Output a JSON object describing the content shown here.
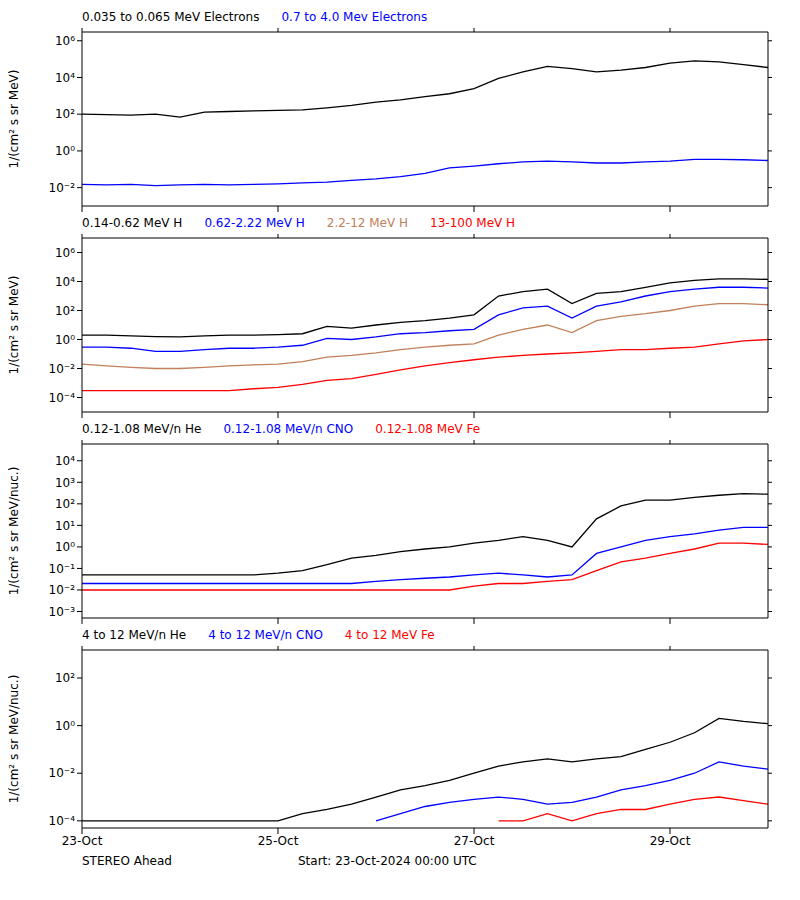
{
  "chart_data": [
    {
      "type": "line",
      "log": "y",
      "grid": false,
      "legend": "top",
      "tick_labels": "y",
      "ylabel": "1/(cm² s sr MeV)",
      "x": [
        0,
        0.25,
        0.5,
        0.75,
        1,
        1.25,
        1.5,
        1.75,
        2,
        2.25,
        2.5,
        2.75,
        3,
        3.25,
        3.5,
        3.75,
        4,
        4.25,
        4.5,
        4.75,
        5,
        5.25,
        5.5,
        5.75,
        6,
        6.25,
        6.5,
        6.75,
        7
      ],
      "xlim": [
        0,
        7
      ],
      "xticks": [
        {
          "value": 0,
          "label": "23-Oct"
        },
        {
          "value": 2,
          "label": "25-Oct"
        },
        {
          "value": 4,
          "label": "27-Oct"
        },
        {
          "value": 6,
          "label": "29-Oct"
        }
      ],
      "ylim": [
        0.001,
        3000000
      ],
      "yticks": [
        {
          "value": 0.01,
          "label": "10⁻²"
        },
        {
          "value": 1,
          "label": "10⁰"
        },
        {
          "value": 100,
          "label": "10²"
        },
        {
          "value": 10000,
          "label": "10⁴"
        },
        {
          "value": 1000000,
          "label": "10⁶"
        }
      ],
      "series": [
        {
          "name": "0.035 to 0.065 MeV Electrons",
          "color": "#000000",
          "values": [
            100,
            95,
            90,
            100,
            70,
            130,
            140,
            150,
            160,
            170,
            220,
            300,
            450,
            600,
            900,
            1300,
            2500,
            9000,
            20000,
            40000,
            30000,
            20000,
            25000,
            35000,
            60000,
            80000,
            70000,
            50000,
            35000
          ]
        },
        {
          "name": "0.7 to 4.0 Mev Electrons",
          "color": "#0000ff",
          "values": [
            0.015,
            0.014,
            0.015,
            0.013,
            0.014,
            0.015,
            0.014,
            0.015,
            0.016,
            0.018,
            0.02,
            0.025,
            0.03,
            0.04,
            0.06,
            0.12,
            0.15,
            0.2,
            0.25,
            0.28,
            0.25,
            0.22,
            0.22,
            0.25,
            0.28,
            0.35,
            0.35,
            0.33,
            0.3
          ]
        }
      ]
    },
    {
      "type": "line",
      "log": "y",
      "grid": false,
      "legend": "top",
      "tick_labels": "y",
      "ylabel": "1/(cm² s sr MeV)",
      "x": [
        0,
        0.25,
        0.5,
        0.75,
        1,
        1.25,
        1.5,
        1.75,
        2,
        2.25,
        2.5,
        2.75,
        3,
        3.25,
        3.5,
        3.75,
        4,
        4.25,
        4.5,
        4.75,
        5,
        5.25,
        5.5,
        5.75,
        6,
        6.25,
        6.5,
        6.75,
        7
      ],
      "xlim": [
        0,
        7
      ],
      "xticks": [
        {
          "value": 0,
          "label": "23-Oct"
        },
        {
          "value": 2,
          "label": "25-Oct"
        },
        {
          "value": 4,
          "label": "27-Oct"
        },
        {
          "value": 6,
          "label": "29-Oct"
        }
      ],
      "ylim": [
        1e-05,
        10000000
      ],
      "yticks": [
        {
          "value": 0.0001,
          "label": "10⁻⁴"
        },
        {
          "value": 0.01,
          "label": "10⁻²"
        },
        {
          "value": 1,
          "label": "10⁰"
        },
        {
          "value": 100,
          "label": "10²"
        },
        {
          "value": 10000,
          "label": "10⁴"
        },
        {
          "value": 1000000,
          "label": "10⁶"
        }
      ],
      "series": [
        {
          "name": "0.14-0.62 MeV H",
          "color": "#000000",
          "values": [
            2,
            2,
            1.8,
            1.6,
            1.5,
            1.8,
            2,
            2,
            2.2,
            2.5,
            8,
            6,
            10,
            15,
            20,
            30,
            50,
            1000,
            2000,
            3000,
            300,
            1500,
            2000,
            4000,
            8000,
            12000,
            15000,
            15000,
            14000
          ]
        },
        {
          "name": "0.62-2.22 MeV H",
          "color": "#0000ff",
          "values": [
            0.3,
            0.3,
            0.25,
            0.15,
            0.15,
            0.2,
            0.25,
            0.25,
            0.3,
            0.4,
            1.2,
            1,
            1.5,
            2.5,
            3,
            4,
            5,
            50,
            150,
            200,
            30,
            200,
            400,
            1000,
            2000,
            3000,
            4000,
            4000,
            3500
          ]
        },
        {
          "name": "2.2-12 MeV H",
          "color": "#c0805a",
          "values": [
            0.02,
            0.015,
            0.012,
            0.01,
            0.01,
            0.012,
            0.015,
            0.018,
            0.02,
            0.03,
            0.06,
            0.08,
            0.12,
            0.2,
            0.3,
            0.4,
            0.5,
            2,
            5,
            10,
            3,
            20,
            40,
            60,
            100,
            200,
            300,
            300,
            250
          ]
        },
        {
          "name": "13-100 MeV H",
          "color": "#ff0000",
          "values": [
            0.0003,
            0.0003,
            0.0003,
            0.0003,
            0.0003,
            0.0003,
            0.0003,
            0.0004,
            0.0005,
            0.0008,
            0.0015,
            0.002,
            0.004,
            0.008,
            0.015,
            0.025,
            0.04,
            0.06,
            0.08,
            0.1,
            0.12,
            0.15,
            0.2,
            0.2,
            0.25,
            0.3,
            0.5,
            0.8,
            1
          ]
        }
      ]
    },
    {
      "type": "line",
      "log": "y",
      "grid": false,
      "legend": "top",
      "tick_labels": "y",
      "ylabel": "1/(cm² s sr MeV/nuc.)",
      "x": [
        0,
        0.25,
        0.5,
        0.75,
        1,
        1.25,
        1.5,
        1.75,
        2,
        2.25,
        2.5,
        2.75,
        3,
        3.25,
        3.5,
        3.75,
        4,
        4.25,
        4.5,
        4.75,
        5,
        5.25,
        5.5,
        5.75,
        6,
        6.25,
        6.5,
        6.75,
        7
      ],
      "xlim": [
        0,
        7
      ],
      "xticks": [
        {
          "value": 0,
          "label": "23-Oct"
        },
        {
          "value": 2,
          "label": "25-Oct"
        },
        {
          "value": 4,
          "label": "27-Oct"
        },
        {
          "value": 6,
          "label": "29-Oct"
        }
      ],
      "ylim": [
        0.0005,
        60000
      ],
      "yticks": [
        {
          "value": 0.001,
          "label": "10⁻³"
        },
        {
          "value": 0.01,
          "label": "10⁻²"
        },
        {
          "value": 0.1,
          "label": "10⁻¹"
        },
        {
          "value": 1,
          "label": "10⁰"
        },
        {
          "value": 10,
          "label": "10¹"
        },
        {
          "value": 100,
          "label": "10²"
        },
        {
          "value": 1000,
          "label": "10³"
        },
        {
          "value": 10000,
          "label": "10⁴"
        }
      ],
      "series": [
        {
          "name": "0.12-1.08 MeV/n He",
          "color": "#000000",
          "values": [
            0.05,
            0.05,
            0.05,
            0.05,
            0.05,
            0.05,
            0.05,
            0.05,
            0.06,
            0.08,
            0.15,
            0.3,
            0.4,
            0.6,
            0.8,
            1,
            1.5,
            2,
            3,
            2,
            1,
            20,
            80,
            150,
            150,
            200,
            250,
            300,
            280
          ]
        },
        {
          "name": "0.12-1.08 MeV/n CNO",
          "color": "#0000ff",
          "values": [
            0.02,
            0.02,
            0.02,
            0.02,
            0.02,
            0.02,
            0.02,
            0.02,
            0.02,
            0.02,
            0.02,
            0.02,
            0.025,
            0.03,
            0.035,
            0.04,
            0.05,
            0.06,
            0.05,
            0.04,
            0.05,
            0.5,
            1,
            2,
            3,
            4,
            6,
            8,
            8
          ]
        },
        {
          "name": "0.12-1.08 MeV Fe",
          "color": "#ff0000",
          "values": [
            0.01,
            0.01,
            0.01,
            0.01,
            0.01,
            0.01,
            0.01,
            0.01,
            0.01,
            0.01,
            0.01,
            0.01,
            0.01,
            0.01,
            0.01,
            0.01,
            0.015,
            0.02,
            0.02,
            0.025,
            0.03,
            0.08,
            0.2,
            0.3,
            0.5,
            0.8,
            1.5,
            1.5,
            1.3
          ]
        }
      ]
    },
    {
      "type": "line",
      "log": "y",
      "grid": false,
      "legend": "top",
      "ylabel": "1/(cm² s sr MeV/nuc.)",
      "x": [
        0,
        0.25,
        0.5,
        0.75,
        1,
        1.25,
        1.5,
        1.75,
        2,
        2.25,
        2.5,
        2.75,
        3,
        3.25,
        3.5,
        3.75,
        4,
        4.25,
        4.5,
        4.75,
        5,
        5.25,
        5.5,
        5.75,
        6,
        6.25,
        6.5,
        6.75,
        7
      ],
      "xlim": [
        0,
        7
      ],
      "xticks": [
        {
          "value": 0,
          "label": "23-Oct"
        },
        {
          "value": 2,
          "label": "25-Oct"
        },
        {
          "value": 4,
          "label": "27-Oct"
        },
        {
          "value": 6,
          "label": "29-Oct"
        }
      ],
      "ylim": [
        5e-05,
        1500
      ],
      "yticks": [
        {
          "value": 0.0001,
          "label": "10⁻⁴"
        },
        {
          "value": 0.01,
          "label": "10⁻²"
        },
        {
          "value": 1,
          "label": "10⁰"
        },
        {
          "value": 100,
          "label": "10²"
        }
      ],
      "series": [
        {
          "name": "4 to 12 MeV/n He",
          "color": "#000000",
          "values": [
            0.0001,
            0.0001,
            0.0001,
            0.0001,
            0.0001,
            0.0001,
            0.0001,
            0.0001,
            0.0001,
            0.0002,
            0.0003,
            0.0005,
            0.001,
            0.002,
            0.003,
            0.005,
            0.01,
            0.02,
            0.03,
            0.04,
            0.03,
            0.04,
            0.05,
            0.1,
            0.2,
            0.5,
            2,
            1.5,
            1.2
          ]
        },
        {
          "name": "4 to 12 MeV/n CNO",
          "color": "#0000ff",
          "values": [
            null,
            null,
            null,
            null,
            null,
            null,
            null,
            null,
            null,
            null,
            null,
            null,
            0.0001,
            0.0002,
            0.0004,
            0.0006,
            0.0008,
            0.001,
            0.0008,
            0.0005,
            0.0006,
            0.001,
            0.002,
            0.003,
            0.005,
            0.01,
            0.03,
            0.02,
            0.015
          ]
        },
        {
          "name": "4 to 12 MeV Fe",
          "color": "#ff0000",
          "values": [
            null,
            null,
            null,
            null,
            null,
            null,
            null,
            null,
            null,
            null,
            null,
            null,
            null,
            null,
            null,
            null,
            null,
            0.0001,
            0.0001,
            0.0002,
            0.0001,
            0.0002,
            0.0003,
            0.0003,
            0.0005,
            0.0008,
            0.001,
            0.0007,
            0.0005
          ]
        }
      ]
    }
  ],
  "footer": {
    "left": "STEREO Ahead",
    "center": "Start: 23-Oct-2024 00:00 UTC"
  }
}
